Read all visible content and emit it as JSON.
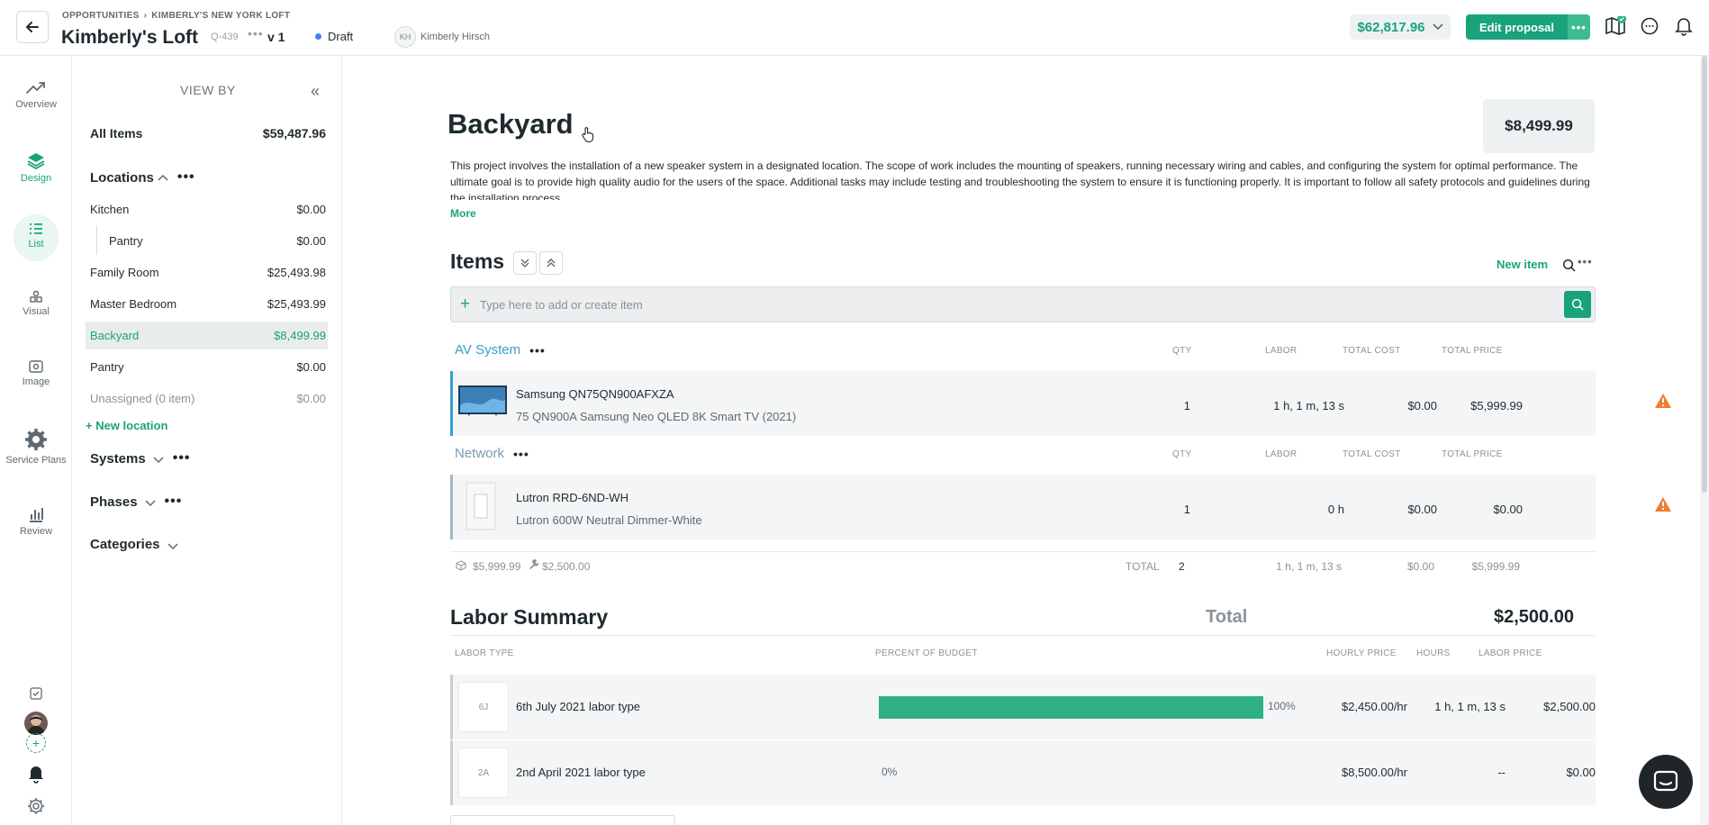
{
  "header": {
    "breadcrumb": [
      "OPPORTUNITIES",
      "KIMBERLY'S NEW YORK LOFT"
    ],
    "title": "Kimberly's Loft",
    "quote_number": "Q-439",
    "more_dots": "•••",
    "version": "v 1",
    "status": "Draft",
    "owner_initials": "KH",
    "owner_name": "Kimberly Hirsch",
    "total": "$62,817.96",
    "edit_label": "Edit proposal",
    "edit_more": "•••"
  },
  "rail": {
    "items": [
      {
        "label": "Overview",
        "icon": "trend-icon"
      },
      {
        "label": "Design",
        "icon": "layers-icon"
      },
      {
        "label": "List",
        "icon": "list-icon"
      },
      {
        "label": "Visual",
        "icon": "visual-icon"
      },
      {
        "label": "Image",
        "icon": "image-icon"
      },
      {
        "label": "Service Plans",
        "icon": "gear-icon"
      },
      {
        "label": "Review",
        "icon": "bar-chart-icon"
      }
    ]
  },
  "sidebar": {
    "view_by": "VIEW BY",
    "all_items": {
      "label": "All Items",
      "value": "$59,487.96"
    },
    "locations_label": "Locations",
    "locations": [
      {
        "label": "Kitchen",
        "value": "$0.00"
      },
      {
        "label": "Pantry",
        "value": "$0.00"
      },
      {
        "label": "Family Room",
        "value": "$25,493.98"
      },
      {
        "label": "Master Bedroom",
        "value": "$25,493.99"
      },
      {
        "label": "Backyard",
        "value": "$8,499.99"
      },
      {
        "label": "Pantry",
        "value": "$0.00"
      },
      {
        "label": "Unassigned (0 item)",
        "value": "$0.00"
      }
    ],
    "new_location": "+ New location",
    "systems_label": "Systems",
    "phases_label": "Phases",
    "categories_label": "Categories"
  },
  "main": {
    "section_title": "Backyard",
    "section_price": "$8,499.99",
    "description": "This project involves the installation of a new speaker system in a designated location. The scope of work includes the mounting of speakers, running necessary wiring and cables, and configuring the system for optimal performance. The ultimate goal is to provide high quality audio for the users of the space. Additional tasks may include testing and troubleshooting the system to ensure it is functioning properly. It is important to follow all safety protocols and guidelines during the installation process.",
    "more_label": "More",
    "items_title": "Items",
    "new_item_label": "New item",
    "search_placeholder": "Type here to add or create item",
    "columns": {
      "qty": "QTY",
      "labor": "LABOR",
      "total_cost": "TOTAL COST",
      "total_price": "TOTAL PRICE"
    },
    "groups": [
      {
        "name": "AV System",
        "item": {
          "name": "Samsung QN75QN900AFXZA",
          "desc": "75 QN900A Samsung Neo QLED 8K Smart TV (2021)",
          "qty": "1",
          "labor": "1 h, 1 m, 13 s",
          "total_cost": "$0.00",
          "total_price": "$5,999.99"
        }
      },
      {
        "name": "Network",
        "item": {
          "name": "Lutron RRD-6ND-WH",
          "desc": "Lutron 600W Neutral Dimmer-White",
          "qty": "1",
          "labor": "0 h",
          "total_cost": "$0.00",
          "total_price": "$0.00"
        }
      }
    ],
    "totals": {
      "products": "$5,999.99",
      "labor": "$2,500.00",
      "label": "TOTAL",
      "qty": "2",
      "labor_time": "1 h, 1 m, 13 s",
      "total_cost": "$0.00",
      "total_price": "$5,999.99"
    },
    "labor_summary": {
      "title": "Labor Summary",
      "total_label": "Total",
      "total_value": "$2,500.00",
      "columns": {
        "type": "LABOR TYPE",
        "percent": "PERCENT OF BUDGET",
        "hourly": "HOURLY PRICE",
        "hours": "HOURS",
        "price": "LABOR PRICE"
      },
      "rows": [
        {
          "badge": "6J",
          "name": "6th July 2021 labor type",
          "percent_value": 1.0,
          "percent": "100%",
          "hourly": "$2,450.00/hr",
          "hours": "1 h, 1 m, 13 s",
          "price": "$2,500.00"
        },
        {
          "badge": "2A",
          "name": "2nd April 2021 labor type",
          "percent_value": 0.0,
          "percent": "0%",
          "hourly": "$8,500.00/hr",
          "hours": "--",
          "price": "$0.00"
        }
      ]
    }
  },
  "colors": {
    "accent": "#1aa37a",
    "warning": "#ee7d31",
    "group_blue": "#3a9fcf"
  }
}
